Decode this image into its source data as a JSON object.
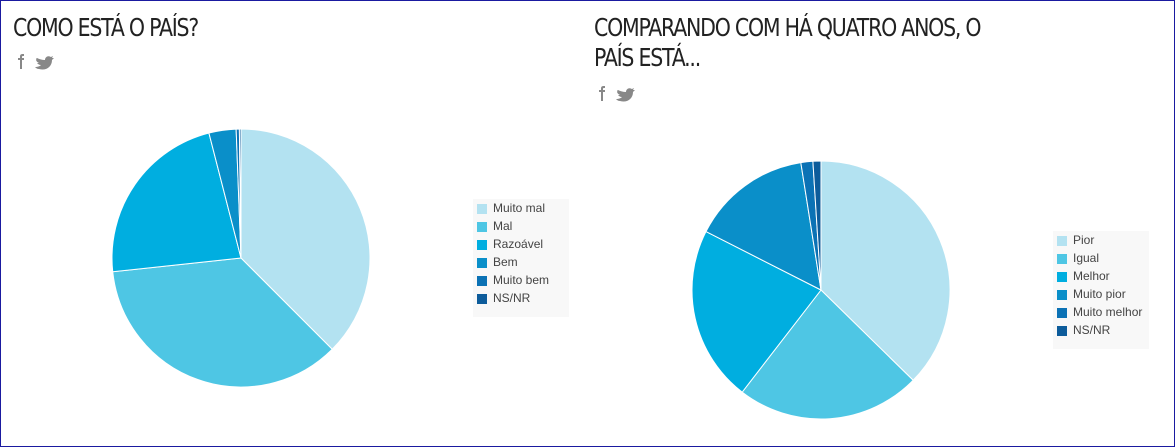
{
  "chart_data": [
    {
      "type": "pie",
      "title": "Como está o país?",
      "categories": [
        "Muito mal",
        "Mal",
        "Razoável",
        "Bem",
        "Muito bem",
        "NS/NR"
      ],
      "values": [
        37.5,
        35.8,
        22.7,
        3.4,
        0.4,
        0.2
      ],
      "colors": [
        "#b3e2f1",
        "#4ec6e4",
        "#00aee0",
        "#0a8fc9",
        "#0b72b5",
        "#0d5c9b"
      ],
      "legend": "right"
    },
    {
      "type": "pie",
      "title": "Comparando com há quatro anos, o país está...",
      "categories": [
        "Pior",
        "Igual",
        "Melhor",
        "Muito pior",
        "Muito melhor",
        "NS/NR"
      ],
      "values": [
        37.3,
        23.1,
        22.0,
        15.0,
        1.5,
        1.0
      ],
      "colors": [
        "#b3e2f1",
        "#4ec6e4",
        "#00aee0",
        "#0a8fc9",
        "#0b72b5",
        "#0d5c9b"
      ],
      "legend": "right"
    }
  ]
}
